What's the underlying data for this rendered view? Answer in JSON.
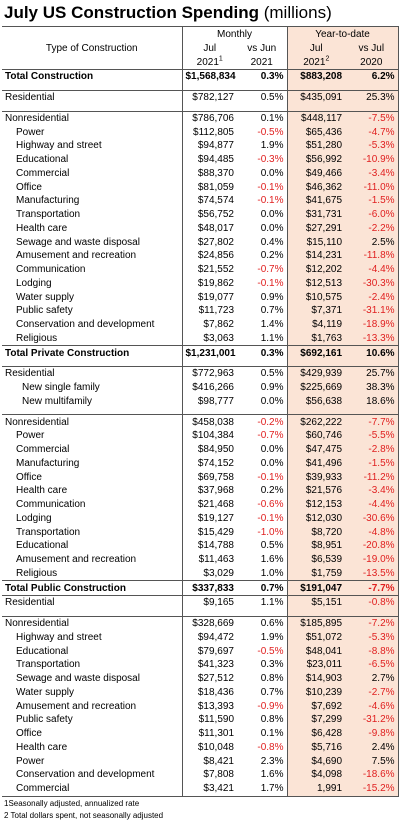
{
  "title": {
    "main": "July US Construction Spending",
    "sub": " (millions)"
  },
  "header": {
    "monthly": "Monthly",
    "ytd": "Year-to-date",
    "type": "Type of Construction",
    "col1a": "Jul",
    "col1b": "2021",
    "col1sup": "1",
    "col2a": "vs Jun",
    "col2b": "2021",
    "col3a": "Jul",
    "col3b": "2021",
    "col3sup": "2",
    "col4a": "vs Jul",
    "col4b": "2020"
  },
  "rows": [
    {
      "label": "Total Construction",
      "m": "$1,568,834",
      "mp": "0.3%",
      "y": "$883,208",
      "yp": "6.2%",
      "bold": true,
      "sec": true
    },
    {
      "gap": true
    },
    {
      "label": "Residential",
      "m": "$782,127",
      "mp": "0.5%",
      "y": "$435,091",
      "yp": "25.3%",
      "sec": true
    },
    {
      "gap": true
    },
    {
      "label": "Nonresidential",
      "m": "$786,706",
      "mp": "0.1%",
      "y": "$448,117",
      "yp": "-7.5%",
      "sec": true
    },
    {
      "label": "Power",
      "m": "$112,805",
      "mp": "-0.5%",
      "y": "$65,436",
      "yp": "-4.7%",
      "ind": 1
    },
    {
      "label": "Highway and street",
      "m": "$94,877",
      "mp": "1.9%",
      "y": "$51,280",
      "yp": "-5.3%",
      "ind": 1
    },
    {
      "label": "Educational",
      "m": "$94,485",
      "mp": "-0.3%",
      "y": "$56,992",
      "yp": "-10.9%",
      "ind": 1
    },
    {
      "label": "Commercial",
      "m": "$88,370",
      "mp": "0.0%",
      "y": "$49,466",
      "yp": "-3.4%",
      "ind": 1
    },
    {
      "label": "Office",
      "m": "$81,059",
      "mp": "-0.1%",
      "y": "$46,362",
      "yp": "-11.0%",
      "ind": 1
    },
    {
      "label": "Manufacturing",
      "m": "$74,574",
      "mp": "-0.1%",
      "y": "$41,675",
      "yp": "-1.5%",
      "ind": 1
    },
    {
      "label": "Transportation",
      "m": "$56,752",
      "mp": "0.0%",
      "y": "$31,731",
      "yp": "-6.0%",
      "ind": 1
    },
    {
      "label": "Health care",
      "m": "$48,017",
      "mp": "0.0%",
      "y": "$27,291",
      "yp": "-2.2%",
      "ind": 1
    },
    {
      "label": "Sewage and waste disposal",
      "m": "$27,802",
      "mp": "0.4%",
      "y": "$15,110",
      "yp": "2.5%",
      "ind": 1
    },
    {
      "label": "Amusement and recreation",
      "m": "$24,856",
      "mp": "0.2%",
      "y": "$14,231",
      "yp": "-11.8%",
      "ind": 1
    },
    {
      "label": "Communication",
      "m": "$21,552",
      "mp": "-0.7%",
      "y": "$12,202",
      "yp": "-4.4%",
      "ind": 1
    },
    {
      "label": "Lodging",
      "m": "$19,862",
      "mp": "-0.1%",
      "y": "$12,513",
      "yp": "-30.3%",
      "ind": 1
    },
    {
      "label": "Water supply",
      "m": "$19,077",
      "mp": "0.9%",
      "y": "$10,575",
      "yp": "-2.4%",
      "ind": 1
    },
    {
      "label": "Public safety",
      "m": "$11,723",
      "mp": "0.7%",
      "y": "$7,371",
      "yp": "-31.1%",
      "ind": 1
    },
    {
      "label": "Conservation and development",
      "m": "$7,862",
      "mp": "1.4%",
      "y": "$4,119",
      "yp": "-18.9%",
      "ind": 1
    },
    {
      "label": "Religious",
      "m": "$3,063",
      "mp": "1.1%",
      "y": "$1,763",
      "yp": "-13.3%",
      "ind": 1
    },
    {
      "label": "Total Private Construction",
      "m": "$1,231,001",
      "mp": "0.3%",
      "y": "$692,161",
      "yp": "10.6%",
      "bold": true,
      "sec": true
    },
    {
      "gap": true
    },
    {
      "label": "Residential",
      "m": "$772,963",
      "mp": "0.5%",
      "y": "$429,939",
      "yp": "25.7%",
      "sec": true
    },
    {
      "label": "New single family",
      "m": "$416,266",
      "mp": "0.9%",
      "y": "$225,669",
      "yp": "38.3%",
      "ind": 2
    },
    {
      "label": "New multifamily",
      "m": "$98,777",
      "mp": "0.0%",
      "y": "$56,638",
      "yp": "18.6%",
      "ind": 2
    },
    {
      "gap": true
    },
    {
      "label": "Nonresidential",
      "m": "$458,038",
      "mp": "-0.2%",
      "y": "$262,222",
      "yp": "-7.7%",
      "sec": true
    },
    {
      "label": "Power",
      "m": "$104,384",
      "mp": "-0.7%",
      "y": "$60,746",
      "yp": "-5.5%",
      "ind": 1
    },
    {
      "label": "Commercial",
      "m": "$84,950",
      "mp": "0.0%",
      "y": "$47,475",
      "yp": "-2.8%",
      "ind": 1
    },
    {
      "label": "Manufacturing",
      "m": "$74,152",
      "mp": "0.0%",
      "y": "$41,496",
      "yp": "-1.5%",
      "ind": 1
    },
    {
      "label": "Office",
      "m": "$69,758",
      "mp": "-0.1%",
      "y": "$39,933",
      "yp": "-11.2%",
      "ind": 1
    },
    {
      "label": "Health care",
      "m": "$37,968",
      "mp": "0.2%",
      "y": "$21,576",
      "yp": "-3.4%",
      "ind": 1
    },
    {
      "label": "Communication",
      "m": "$21,468",
      "mp": "-0.6%",
      "y": "$12,153",
      "yp": "-4.4%",
      "ind": 1
    },
    {
      "label": "Lodging",
      "m": "$19,127",
      "mp": "-0.1%",
      "y": "$12,030",
      "yp": "-30.6%",
      "ind": 1
    },
    {
      "label": "Transportation",
      "m": "$15,429",
      "mp": "-1.0%",
      "y": "$8,720",
      "yp": "-4.8%",
      "ind": 1
    },
    {
      "label": "Educational",
      "m": "$14,788",
      "mp": "0.5%",
      "y": "$8,951",
      "yp": "-20.8%",
      "ind": 1
    },
    {
      "label": "Amusement and recreation",
      "m": "$11,463",
      "mp": "1.6%",
      "y": "$6,539",
      "yp": "-19.0%",
      "ind": 1
    },
    {
      "label": "Religious",
      "m": "$3,029",
      "mp": "1.0%",
      "y": "$1,759",
      "yp": "-13.5%",
      "ind": 1
    },
    {
      "label": "Total Public Construction",
      "m": "$337,833",
      "mp": "0.7%",
      "y": "$191,047",
      "yp": "-7.7%",
      "bold": true,
      "sec": true
    },
    {
      "label": "Residential",
      "m": "$9,165",
      "mp": "1.1%",
      "y": "$5,151",
      "yp": "-0.8%",
      "sec": true
    },
    {
      "gap": true
    },
    {
      "label": "Nonresidential",
      "m": "$328,669",
      "mp": "0.6%",
      "y": "$185,895",
      "yp": "-7.2%",
      "sec": true
    },
    {
      "label": "Highway and street",
      "m": "$94,472",
      "mp": "1.9%",
      "y": "$51,072",
      "yp": "-5.3%",
      "ind": 1
    },
    {
      "label": "Educational",
      "m": "$79,697",
      "mp": "-0.5%",
      "y": "$48,041",
      "yp": "-8.8%",
      "ind": 1
    },
    {
      "label": "Transportation",
      "m": "$41,323",
      "mp": "0.3%",
      "y": "$23,011",
      "yp": "-6.5%",
      "ind": 1
    },
    {
      "label": "Sewage and waste disposal",
      "m": "$27,512",
      "mp": "0.8%",
      "y": "$14,903",
      "yp": "2.7%",
      "ind": 1
    },
    {
      "label": "Water supply",
      "m": "$18,436",
      "mp": "0.7%",
      "y": "$10,239",
      "yp": "-2.7%",
      "ind": 1
    },
    {
      "label": "Amusement and recreation",
      "m": "$13,393",
      "mp": "-0.9%",
      "y": "$7,692",
      "yp": "-4.6%",
      "ind": 1
    },
    {
      "label": "Public safety",
      "m": "$11,590",
      "mp": "0.8%",
      "y": "$7,299",
      "yp": "-31.2%",
      "ind": 1
    },
    {
      "label": "Office",
      "m": "$11,301",
      "mp": "0.1%",
      "y": "$6,428",
      "yp": "-9.8%",
      "ind": 1
    },
    {
      "label": "Health care",
      "m": "$10,048",
      "mp": "-0.8%",
      "y": "$5,716",
      "yp": "2.4%",
      "ind": 1
    },
    {
      "label": "Power",
      "m": "$8,421",
      "mp": "2.3%",
      "y": "$4,690",
      "yp": "7.5%",
      "ind": 1
    },
    {
      "label": "Conservation and development",
      "m": "$7,808",
      "mp": "1.6%",
      "y": "$4,098",
      "yp": "-18.6%",
      "ind": 1
    },
    {
      "label": "Commercial",
      "m": "$3,421",
      "mp": "1.7%",
      "y": "1,991",
      "yp": "-15.2%",
      "ind": 1
    }
  ],
  "notes": [
    "1Seasonally adjusted, annualized rate",
    "2 Total dollars spent, not seasonally adjusted"
  ]
}
